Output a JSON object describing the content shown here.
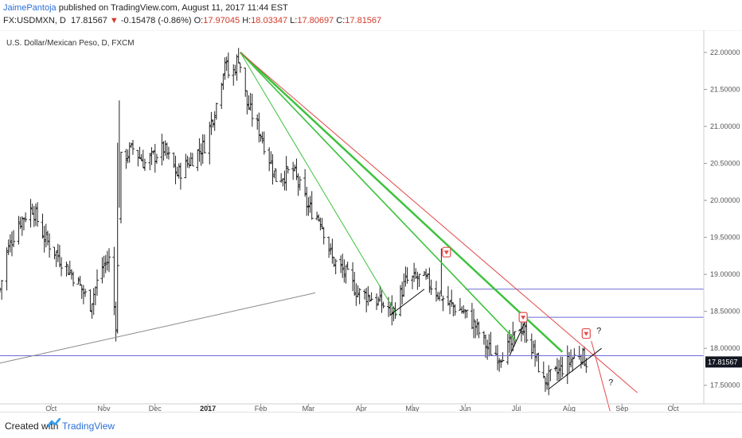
{
  "header": {
    "author": "JaimePantoja",
    "published_text": "published on TradingView.com, August 11, 2017 11:44 EST",
    "symbol": "FX:USDMXN, D",
    "last": "17.81567",
    "change_arrow": "▼",
    "change": "-0.15478 (-0.86%)",
    "o_label": "O:",
    "o_value": "17.97045",
    "h_label": "H:",
    "h_value": "18.03347",
    "l_label": "L:",
    "l_value": "17.80697",
    "c_label": "C:",
    "c_value": "17.81567"
  },
  "footer": {
    "created_with": "Created with",
    "brand": "TradingView"
  },
  "chart_data": {
    "type": "ohlc",
    "title": "U.S. Dollar/Mexican Peso, D, FXCM",
    "x_tick_labels": [
      "Oct",
      "Nov",
      "Dec",
      "2017",
      "Feb",
      "Mar",
      "Apr",
      "May",
      "Jun",
      "Jul",
      "Aug",
      "Sep",
      "Oct"
    ],
    "y_tick_labels": [
      "22.00000",
      "21.50000",
      "21.00000",
      "20.50000",
      "20.00000",
      "19.50000",
      "19.00000",
      "18.50000",
      "18.00000",
      "17.50000"
    ],
    "ylim": [
      17.25,
      22.3
    ],
    "y_ticks": [
      22.0,
      21.5,
      21.0,
      20.5,
      20.0,
      19.5,
      19.0,
      18.5,
      18.0,
      17.5
    ],
    "last_price_label": "17.81567",
    "colors": {
      "bars": "#222222",
      "green_line": "#3cc23c",
      "red_line": "#e24b4b",
      "horizontal": "#6b6bd6",
      "trendline": "#888888",
      "accent": "#e24b4b"
    },
    "anchors": [
      {
        "date": "2016-09-01",
        "price": 18.8
      },
      {
        "date": "2016-09-05",
        "price": 19.3
      },
      {
        "date": "2016-09-12",
        "price": 19.7
      },
      {
        "date": "2016-09-20",
        "price": 19.9
      },
      {
        "date": "2016-09-27",
        "price": 19.5
      },
      {
        "date": "2016-10-05",
        "price": 19.25
      },
      {
        "date": "2016-10-15",
        "price": 18.95
      },
      {
        "date": "2016-10-24",
        "price": 18.6
      },
      {
        "date": "2016-10-31",
        "price": 19.1
      },
      {
        "date": "2016-11-04",
        "price": 19.2
      },
      {
        "date": "2016-11-08",
        "price": 18.35
      },
      {
        "date": "2016-11-11",
        "price": 20.55
      },
      {
        "date": "2016-11-18",
        "price": 20.7
      },
      {
        "date": "2016-11-25",
        "price": 20.5
      },
      {
        "date": "2016-12-06",
        "price": 20.7
      },
      {
        "date": "2016-12-14",
        "price": 20.35
      },
      {
        "date": "2016-12-22",
        "price": 20.55
      },
      {
        "date": "2016-12-30",
        "price": 20.75
      },
      {
        "date": "2017-01-06",
        "price": 21.3
      },
      {
        "date": "2017-01-11",
        "price": 21.9
      },
      {
        "date": "2017-01-14",
        "price": 21.6
      },
      {
        "date": "2017-01-19",
        "price": 21.95
      },
      {
        "date": "2017-01-24",
        "price": 21.3
      },
      {
        "date": "2017-02-01",
        "price": 20.9
      },
      {
        "date": "2017-02-10",
        "price": 20.3
      },
      {
        "date": "2017-02-20",
        "price": 20.4
      },
      {
        "date": "2017-03-01",
        "price": 19.9
      },
      {
        "date": "2017-03-08",
        "price": 19.75
      },
      {
        "date": "2017-03-15",
        "price": 19.2
      },
      {
        "date": "2017-03-23",
        "price": 19.0
      },
      {
        "date": "2017-03-30",
        "price": 18.75
      },
      {
        "date": "2017-04-06",
        "price": 18.7
      },
      {
        "date": "2017-04-13",
        "price": 18.6
      },
      {
        "date": "2017-04-20",
        "price": 18.5
      },
      {
        "date": "2017-04-27",
        "price": 18.9
      },
      {
        "date": "2017-05-05",
        "price": 18.95
      },
      {
        "date": "2017-05-10",
        "price": 18.9
      },
      {
        "date": "2017-05-16",
        "price": 18.75
      },
      {
        "date": "2017-05-22",
        "price": 18.6
      },
      {
        "date": "2017-05-31",
        "price": 18.5
      },
      {
        "date": "2017-06-07",
        "price": 18.3
      },
      {
        "date": "2017-06-14",
        "price": 18.0
      },
      {
        "date": "2017-06-21",
        "price": 17.9
      },
      {
        "date": "2017-06-28",
        "price": 18.05
      },
      {
        "date": "2017-07-03",
        "price": 18.3
      },
      {
        "date": "2017-07-07",
        "price": 18.2
      },
      {
        "date": "2017-07-12",
        "price": 17.9
      },
      {
        "date": "2017-07-17",
        "price": 17.55
      },
      {
        "date": "2017-07-24",
        "price": 17.65
      },
      {
        "date": "2017-07-31",
        "price": 17.8
      },
      {
        "date": "2017-08-07",
        "price": 17.95
      },
      {
        "date": "2017-08-11",
        "price": 17.82
      }
    ],
    "drawings": {
      "horizontal_lines": [
        18.8,
        18.42,
        17.9
      ],
      "green_lines": [
        {
          "from": {
            "date": "2017-01-20",
            "price": 22.0
          },
          "to": {
            "date": "2017-04-22",
            "price": 18.45
          }
        },
        {
          "from": {
            "date": "2017-01-20",
            "price": 22.0
          },
          "to": {
            "date": "2017-07-01",
            "price": 18.1
          }
        },
        {
          "from": {
            "date": "2017-01-20",
            "price": 22.0
          },
          "to": {
            "date": "2017-07-28",
            "price": 17.95
          }
        }
      ],
      "red_lines": [
        {
          "from": {
            "date": "2017-01-20",
            "price": 22.0
          },
          "to": {
            "date": "2017-09-10",
            "price": 17.4
          }
        },
        {
          "from": {
            "date": "2017-08-14",
            "price": 18.1
          },
          "to": {
            "date": "2017-08-25",
            "price": 17.15
          }
        }
      ],
      "black_lines": [
        {
          "from": {
            "date": "2017-04-18",
            "price": 18.45
          },
          "to": {
            "date": "2017-05-08",
            "price": 18.8
          }
        },
        {
          "from": {
            "date": "2017-06-27",
            "price": 17.9
          },
          "to": {
            "date": "2017-07-06",
            "price": 18.35
          }
        },
        {
          "from": {
            "date": "2017-07-20",
            "price": 17.45
          },
          "to": {
            "date": "2017-08-20",
            "price": 18.0
          }
        }
      ],
      "grey_lines": [
        {
          "from": {
            "date": "2016-09-01",
            "price": 17.8
          },
          "to": {
            "date": "2017-03-05",
            "price": 18.75
          }
        }
      ],
      "arrow_markers": [
        {
          "date": "2017-05-21",
          "price": 19.3
        },
        {
          "date": "2017-07-05",
          "price": 18.42
        },
        {
          "date": "2017-08-11",
          "price": 18.2
        }
      ],
      "question_marks": [
        {
          "date": "2017-08-17",
          "price": 18.2
        },
        {
          "date": "2017-08-24",
          "price": 17.5
        }
      ]
    }
  }
}
